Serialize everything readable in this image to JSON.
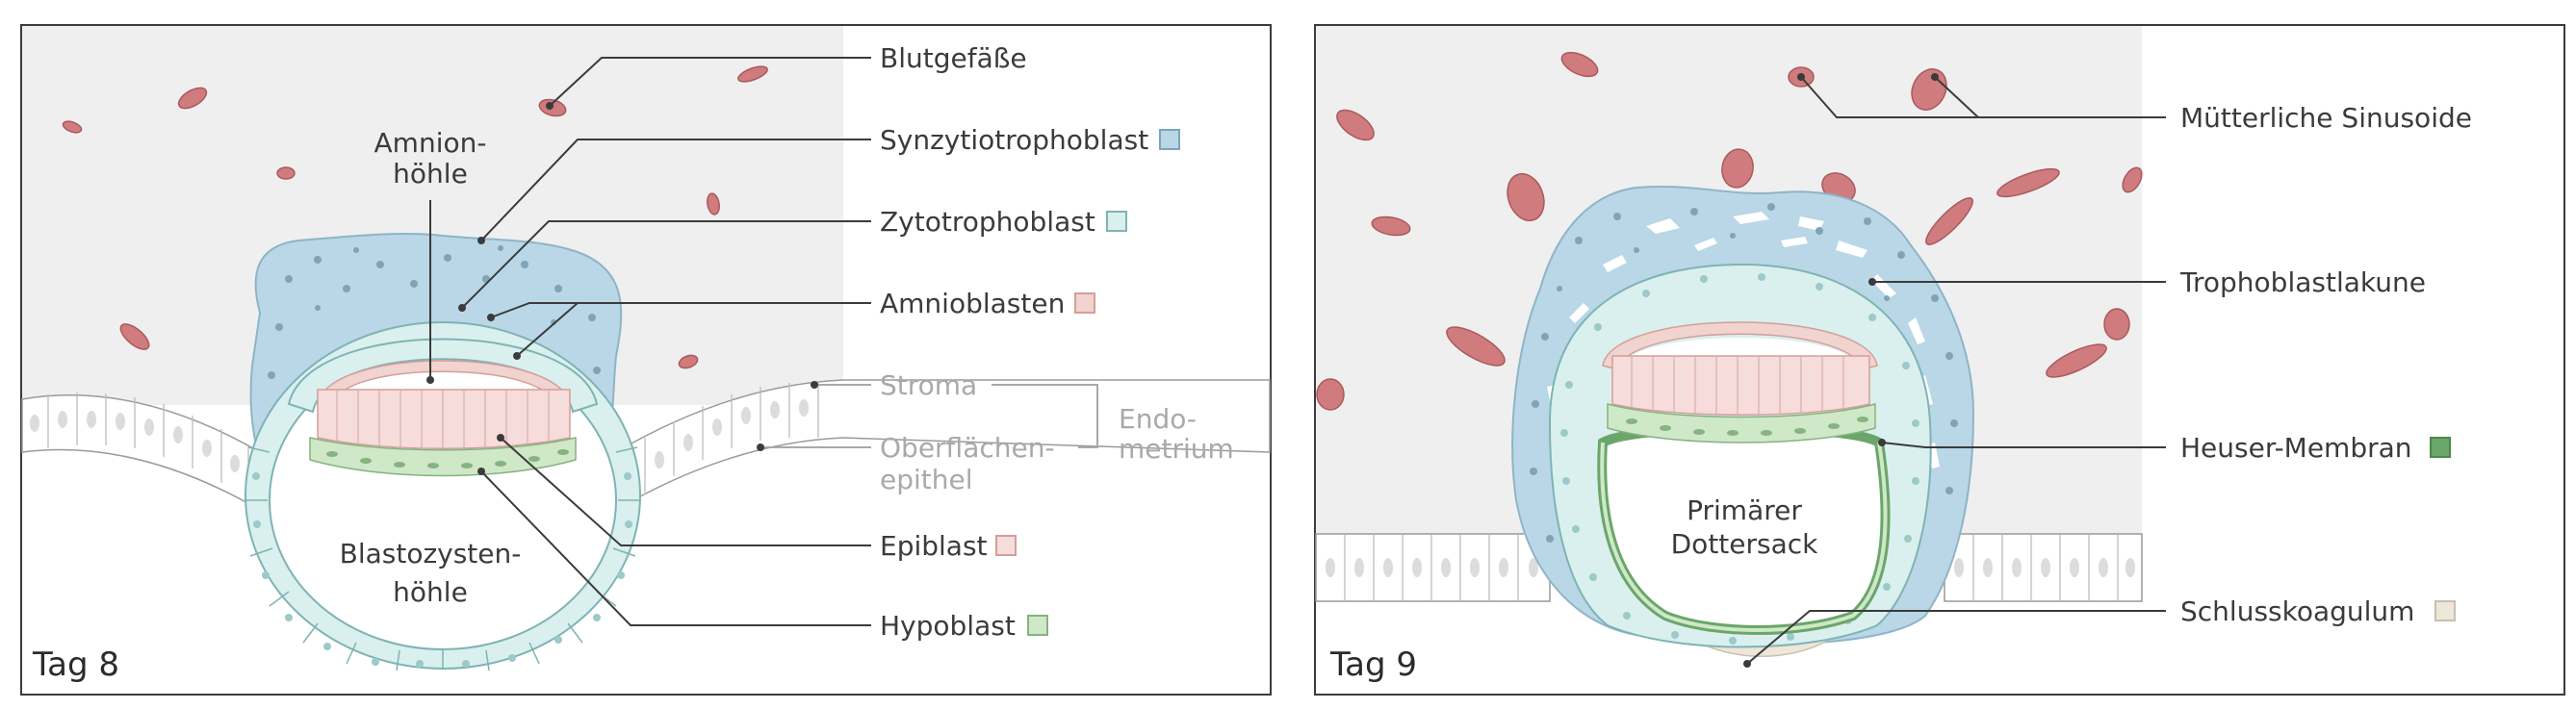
{
  "panels": [
    {
      "tag": "Tag 8",
      "inner_labels": {
        "amnion_1": "Amnion-",
        "amnion_2": "höhle",
        "blasto_1": "Blastozysten-",
        "blasto_2": "höhle"
      },
      "labels": [
        {
          "text": "Blutgefäße",
          "swatch": ""
        },
        {
          "text": "Synzytiotrophoblast",
          "swatch": "#b9d7e6"
        },
        {
          "text": "Zytotrophoblast",
          "swatch": "#d9f0ef"
        },
        {
          "text": "Amnioblasten",
          "swatch": "#f1d3d0"
        },
        {
          "text": "Stroma",
          "swatch": ""
        },
        {
          "text": "Oberflächen-",
          "swatch": ""
        },
        {
          "text": "epithel",
          "swatch": ""
        },
        {
          "text": "Epiblast",
          "swatch": "#f6dcdb"
        },
        {
          "text": "Hypoblast",
          "swatch": "#cfe8c8"
        }
      ],
      "endometrium_1": "Endo-",
      "endometrium_2": "metrium"
    },
    {
      "tag": "Tag 9",
      "inner_labels": {
        "dotter_1": "Primärer",
        "dotter_2": "Dottersack"
      },
      "labels": [
        {
          "text": "Mütterliche Sinusoide",
          "swatch": ""
        },
        {
          "text": "Trophoblastlakune",
          "swatch": ""
        },
        {
          "text": "Heuser-Membran",
          "swatch": "#6aa66a"
        },
        {
          "text": "Schlusskoagulum",
          "swatch": "#ede6d9"
        }
      ]
    }
  ],
  "colors": {
    "stroma": "#efefef",
    "blood": "#d07b7e",
    "synzytio": "#b9d7e6",
    "zyto": "#d9f0ef",
    "amnio": "#f1d3d0",
    "epiblast": "#f6dcdb",
    "hypoblast": "#cfe8c8",
    "heuser": "#6aa66a",
    "koagulum": "#ede6d9"
  }
}
